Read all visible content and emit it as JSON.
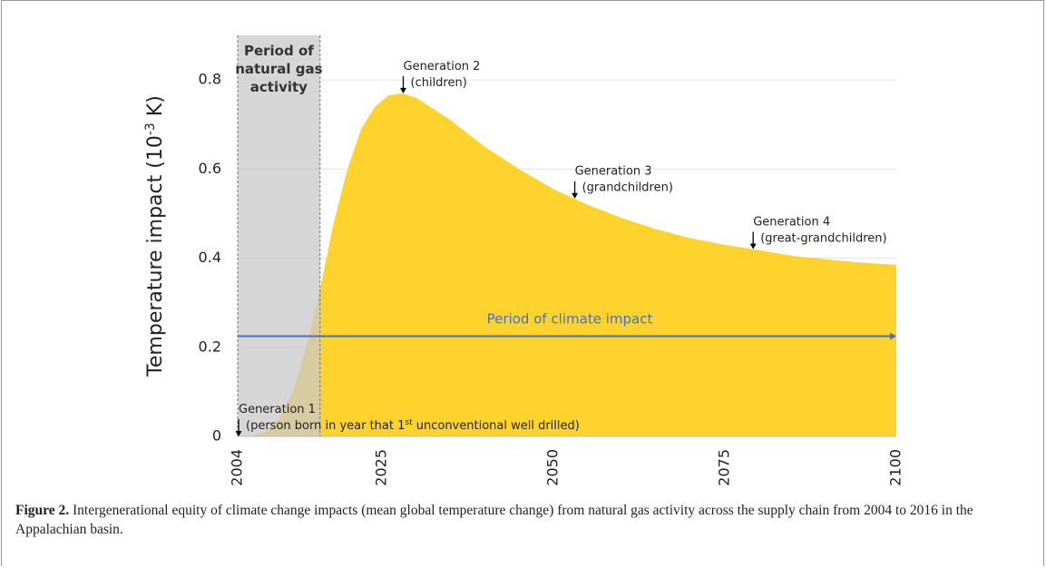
{
  "chart_data": {
    "type": "area",
    "y_label_parts": [
      "Temperature impact (10",
      "-3",
      " K)"
    ],
    "x": [
      2004,
      2006,
      2008,
      2010,
      2012,
      2014,
      2016,
      2018,
      2020,
      2022,
      2024,
      2026,
      2028,
      2030,
      2035,
      2040,
      2045,
      2050,
      2055,
      2060,
      2065,
      2070,
      2075,
      2080,
      2085,
      2090,
      2095,
      2100
    ],
    "values": [
      0,
      0,
      0.01,
      0.04,
      0.1,
      0.2,
      0.33,
      0.48,
      0.6,
      0.69,
      0.74,
      0.765,
      0.77,
      0.76,
      0.71,
      0.65,
      0.6,
      0.555,
      0.52,
      0.49,
      0.465,
      0.445,
      0.43,
      0.418,
      0.405,
      0.397,
      0.39,
      0.385
    ],
    "color": "#fed32e",
    "xlim": [
      2004,
      2100
    ],
    "xticks": [
      2004,
      2025,
      2050,
      2075,
      2100
    ],
    "ylim": [
      0,
      0.9
    ],
    "yticks": [
      0,
      0.2,
      0.4,
      0.6,
      0.8
    ],
    "grid": true,
    "shaded_period": {
      "x": [
        2004,
        2016
      ],
      "color": "#c8c8c8",
      "lines": [
        "Period of",
        "natural gas",
        "activity"
      ]
    },
    "impact_arrow": {
      "label": "Period of climate impact",
      "y": 0.225,
      "x": [
        2004,
        2100
      ],
      "color": "#4472c4"
    },
    "annotations": [
      {
        "x": 2004,
        "lines": [
          [
            "Generation 1"
          ],
          [
            "(person born in year that 1",
            "st",
            " unconventional well drilled)"
          ]
        ]
      },
      {
        "x": 2028,
        "lines": [
          [
            "Generation 2"
          ],
          [
            "(children)"
          ]
        ]
      },
      {
        "x": 2053,
        "lines": [
          [
            "Generation 3"
          ],
          [
            "(grandchildren)"
          ]
        ]
      },
      {
        "x": 2079,
        "lines": [
          [
            "Generation 4"
          ],
          [
            "(great-grandchildren)"
          ]
        ]
      }
    ]
  },
  "caption": {
    "label": "Figure 2.",
    "text": "Intergenerational equity of climate change impacts (mean global temperature change) from natural gas activity across the supply chain from 2004 to 2016 in the Appalachian basin."
  }
}
